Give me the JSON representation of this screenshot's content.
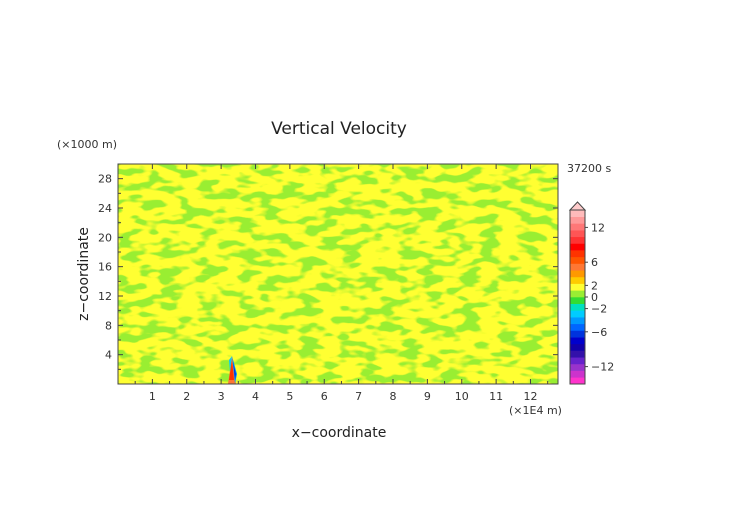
{
  "chart_data": {
    "type": "heatmap",
    "title": "Vertical Velocity",
    "xlabel": "x−coordinate",
    "ylabel": "z−coordinate",
    "x_unit": "(×1E4 m)",
    "y_unit": "(×1000 m)",
    "time_label": "37200 s",
    "x_ticks": [
      "1",
      "2",
      "3",
      "4",
      "5",
      "6",
      "7",
      "8",
      "9",
      "10",
      "11",
      "12"
    ],
    "y_ticks": [
      "4",
      "8",
      "12",
      "16",
      "20",
      "24",
      "28"
    ],
    "xlim": [
      0,
      12.8
    ],
    "ylim": [
      0,
      30
    ],
    "colorbar": {
      "labels": [
        "12",
        "6",
        "2",
        "0",
        "−2",
        "−6",
        "−12"
      ],
      "label_values": [
        12,
        6,
        2,
        0,
        -2,
        -6,
        -12
      ],
      "colors": [
        "#ff33cc",
        "#cc33cc",
        "#9933cc",
        "#6622cc",
        "#3311aa",
        "#1100aa",
        "#0000cc",
        "#0033dd",
        "#0066ff",
        "#0099ff",
        "#00ccff",
        "#00e0c0",
        "#33dd33",
        "#99ee33",
        "#ffff33",
        "#ffcc00",
        "#ff9900",
        "#ff7733",
        "#ff5500",
        "#ff3300",
        "#ff0000",
        "#ff3333",
        "#ff5555",
        "#ff7777",
        "#ff9999",
        "#ffbbbb"
      ]
    },
    "dominant_colors": [
      "#ffff33",
      "#99ee33"
    ]
  }
}
